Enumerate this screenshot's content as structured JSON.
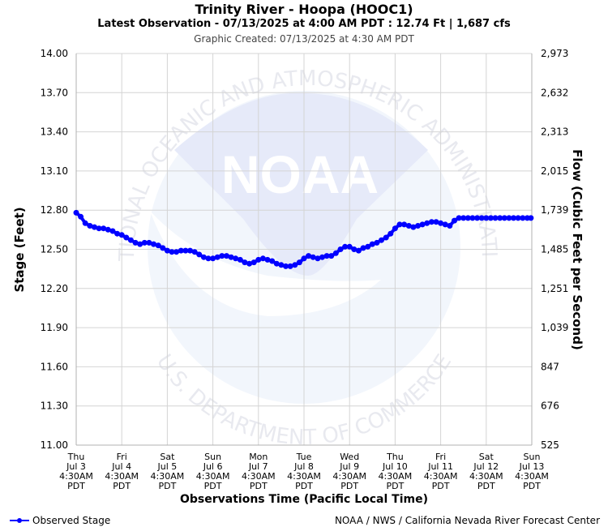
{
  "header": {
    "title": "Trinity River - Hoopa (HOOC1)",
    "subtitle": "Latest Observation - 07/13/2025 at 4:00 AM PDT : 12.74 Ft | 1,687 cfs",
    "created": "Graphic Created: 07/13/2025 at 4:30 AM PDT"
  },
  "watermark": {
    "logo_text": "NOAA",
    "ring_top": "NATIONAL OCEANIC AND ATMOSPHERIC ADMINISTRATION",
    "ring_bottom": "U.S. DEPARTMENT OF COMMERCE"
  },
  "legend": {
    "label": "Observed Stage",
    "color": "#0000ff"
  },
  "credit": "NOAA / NWS / California Nevada River Forecast Center",
  "chart_data": {
    "type": "line",
    "xlabel": "Observations Time (Pacific Local Time)",
    "ylabel": "Stage (Feet)",
    "y2label": "Flow (Cubic Feet per Second)",
    "ylim": [
      11.0,
      14.0
    ],
    "xlim": [
      0,
      10
    ],
    "grid": true,
    "y_ticks": [
      "14.00",
      "13.70",
      "13.40",
      "13.10",
      "12.80",
      "12.50",
      "12.20",
      "11.90",
      "11.60",
      "11.30",
      "11.00"
    ],
    "y2_ticks": [
      "2,973",
      "2,632",
      "2,313",
      "2,015",
      "1,739",
      "1,485",
      "1,251",
      "1,039",
      "847",
      "676",
      "525"
    ],
    "x_ticks": [
      [
        "Thu",
        "Jul 3",
        "4:30AM",
        "PDT"
      ],
      [
        "Fri",
        "Jul 4",
        "4:30AM",
        "PDT"
      ],
      [
        "Sat",
        "Jul 5",
        "4:30AM",
        "PDT"
      ],
      [
        "Sun",
        "Jul 6",
        "4:30AM",
        "PDT"
      ],
      [
        "Mon",
        "Jul 7",
        "4:30AM",
        "PDT"
      ],
      [
        "Tue",
        "Jul 8",
        "4:30AM",
        "PDT"
      ],
      [
        "Wed",
        "Jul 9",
        "4:30AM",
        "PDT"
      ],
      [
        "Thu",
        "Jul 10",
        "4:30AM",
        "PDT"
      ],
      [
        "Fri",
        "Jul 11",
        "4:30AM",
        "PDT"
      ],
      [
        "Sat",
        "Jul 12",
        "4:30AM",
        "PDT"
      ],
      [
        "Sun",
        "Jul 13",
        "4:30AM",
        "PDT"
      ]
    ],
    "series": [
      {
        "name": "Observed Stage",
        "color": "#0000ff",
        "x": [
          0,
          0.1,
          0.2,
          0.3,
          0.4,
          0.5,
          0.6,
          0.7,
          0.8,
          0.9,
          1.0,
          1.1,
          1.2,
          1.3,
          1.4,
          1.5,
          1.6,
          1.7,
          1.8,
          1.9,
          2.0,
          2.1,
          2.2,
          2.3,
          2.4,
          2.5,
          2.6,
          2.7,
          2.8,
          2.9,
          3.0,
          3.1,
          3.2,
          3.3,
          3.4,
          3.5,
          3.6,
          3.7,
          3.8,
          3.9,
          4.0,
          4.1,
          4.2,
          4.3,
          4.4,
          4.5,
          4.6,
          4.7,
          4.8,
          4.9,
          5.0,
          5.1,
          5.2,
          5.3,
          5.4,
          5.5,
          5.6,
          5.7,
          5.8,
          5.9,
          6.0,
          6.1,
          6.2,
          6.3,
          6.4,
          6.5,
          6.6,
          6.7,
          6.8,
          6.9,
          7.0,
          7.1,
          7.2,
          7.3,
          7.4,
          7.5,
          7.6,
          7.7,
          7.8,
          7.9,
          8.0,
          8.1,
          8.2,
          8.3,
          8.4,
          8.5,
          8.6,
          8.7,
          8.8,
          8.9,
          9.0,
          9.1,
          9.2,
          9.3,
          9.4,
          9.5,
          9.6,
          9.7,
          9.8,
          9.9,
          9.98
        ],
        "values": [
          12.78,
          12.75,
          12.7,
          12.68,
          12.67,
          12.66,
          12.66,
          12.65,
          12.64,
          12.62,
          12.61,
          12.59,
          12.57,
          12.55,
          12.54,
          12.55,
          12.55,
          12.54,
          12.53,
          12.51,
          12.49,
          12.48,
          12.48,
          12.49,
          12.49,
          12.49,
          12.48,
          12.46,
          12.44,
          12.43,
          12.43,
          12.44,
          12.45,
          12.45,
          12.44,
          12.43,
          12.42,
          12.4,
          12.39,
          12.4,
          12.42,
          12.43,
          12.42,
          12.41,
          12.39,
          12.38,
          12.37,
          12.37,
          12.38,
          12.4,
          12.43,
          12.45,
          12.44,
          12.43,
          12.44,
          12.45,
          12.45,
          12.47,
          12.5,
          12.52,
          12.52,
          12.5,
          12.49,
          12.51,
          12.52,
          12.54,
          12.55,
          12.57,
          12.59,
          12.62,
          12.66,
          12.69,
          12.69,
          12.68,
          12.67,
          12.68,
          12.69,
          12.7,
          12.71,
          12.71,
          12.7,
          12.69,
          12.68,
          12.72,
          12.74,
          12.74,
          12.74,
          12.74,
          12.74,
          12.74,
          12.74,
          12.74,
          12.74,
          12.74,
          12.74,
          12.74,
          12.74,
          12.74,
          12.74,
          12.74,
          12.74
        ]
      }
    ]
  }
}
